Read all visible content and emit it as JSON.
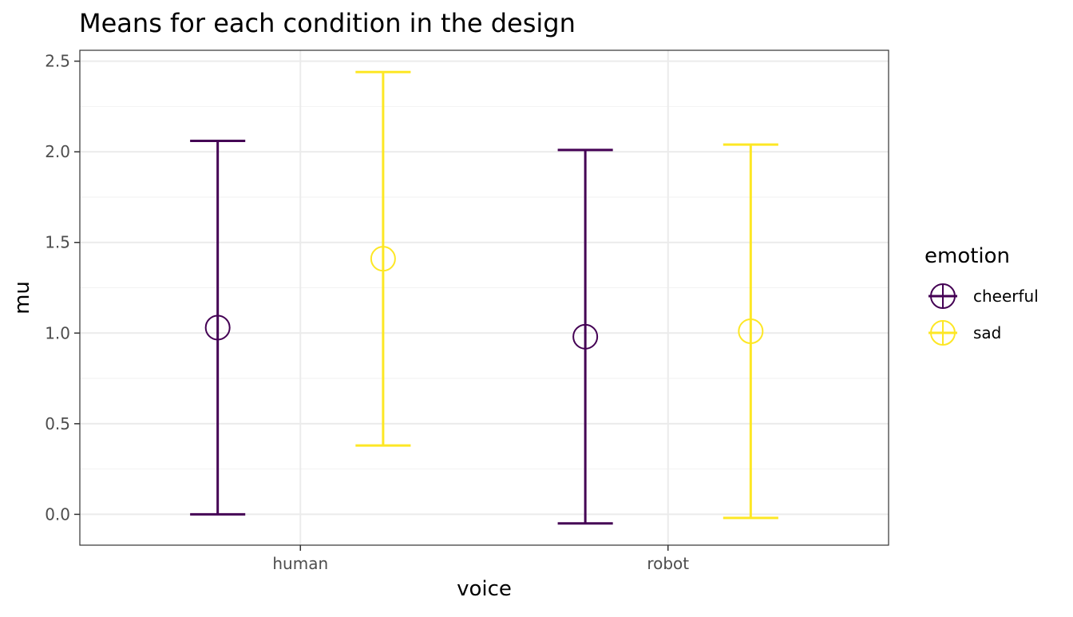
{
  "chart_data": {
    "type": "errorbar",
    "title": "Means for each condition in the design",
    "xlabel": "voice",
    "ylabel": "mu",
    "categories": [
      "human",
      "robot"
    ],
    "ylim": [
      -0.17,
      2.56
    ],
    "yticks": [
      0.0,
      0.5,
      1.0,
      1.5,
      2.0,
      2.5
    ],
    "ytick_labels": [
      "0.0",
      "0.5",
      "1.0",
      "1.5",
      "2.0",
      "2.5"
    ],
    "grid": true,
    "legend": {
      "title": "emotion",
      "position": "right"
    },
    "series": [
      {
        "name": "cheerful",
        "color": "#440154",
        "points": [
          {
            "x": "human",
            "mean": 1.03,
            "lower": 0.0,
            "upper": 2.06
          },
          {
            "x": "robot",
            "mean": 0.98,
            "lower": -0.05,
            "upper": 2.01
          }
        ]
      },
      {
        "name": "sad",
        "color": "#FDE725",
        "points": [
          {
            "x": "human",
            "mean": 1.41,
            "lower": 0.38,
            "upper": 2.44
          },
          {
            "x": "robot",
            "mean": 1.01,
            "lower": -0.02,
            "upper": 2.04
          }
        ]
      }
    ]
  }
}
